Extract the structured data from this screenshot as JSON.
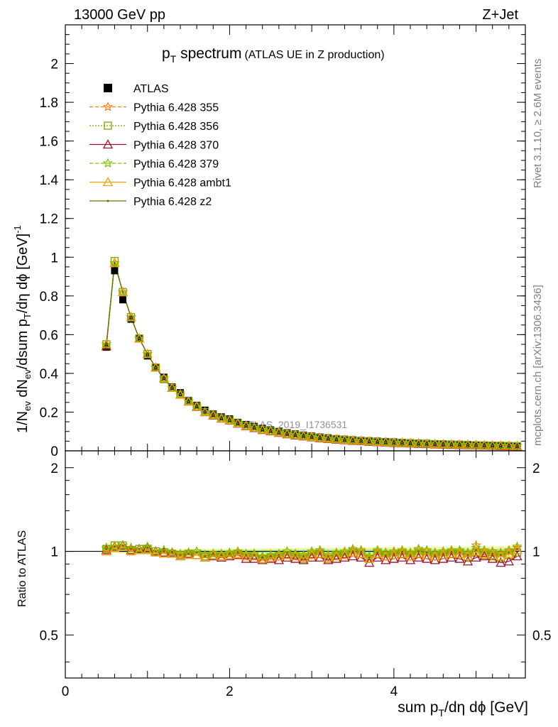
{
  "header": {
    "left": "13000 GeV pp",
    "right": "Z+Jet"
  },
  "title": {
    "main_pre": "p",
    "main_sub": "T",
    "main_post": " spectrum",
    "paren": "(ATLAS UE in Z production)"
  },
  "side_labels": {
    "rivet": "Rivet 3.1.10, ≥ 2.6M events",
    "mcplots": "mcplots.cern.ch [arXiv:1306.3436]"
  },
  "watermark": "ATLAS_2019_I1736531",
  "ylabel_main": "1/N_ev dN_ev/dsum p_T/dη dϕ [GeV]^-1",
  "ylabel_ratio": "Ratio to ATLAS",
  "xlabel": "sum p_T/dη dϕ [GeV]",
  "colors": {
    "atlas": "#000000",
    "p355": "#ff7f0e",
    "p356": "#7fa000",
    "p370": "#a0102a",
    "p379": "#7fc000",
    "ambt1": "#f0a000",
    "z2": "#667000",
    "band_inner": "#a8f0a8",
    "band_outer": "#fff3a0"
  },
  "chart_data": {
    "type": "scatter",
    "main": {
      "xlim": [
        0,
        5.6
      ],
      "ylim": [
        0,
        2.2
      ],
      "y_ticks": [
        "0",
        "0.2",
        "0.4",
        "0.6",
        "0.8",
        "1",
        "1.2",
        "1.4",
        "1.6",
        "1.8",
        "2"
      ]
    },
    "ratio": {
      "ylim": [
        0.35,
        2.3
      ],
      "y_ticks": [
        "0.5",
        "1",
        "2"
      ],
      "reference_line": 1
    },
    "x_ticks": [
      "0",
      "2",
      "4"
    ],
    "legend": [
      "ATLAS",
      "Pythia 6.428 355",
      "Pythia 6.428 356",
      "Pythia 6.428 370",
      "Pythia 6.428 379",
      "Pythia 6.428 ambt1",
      "Pythia 6.428 z2"
    ],
    "legend_position": "top-left",
    "x": [
      0.5,
      0.6,
      0.7,
      0.8,
      0.9,
      1.0,
      1.1,
      1.2,
      1.3,
      1.4,
      1.5,
      1.6,
      1.7,
      1.8,
      1.9,
      2.0,
      2.1,
      2.2,
      2.3,
      2.4,
      2.5,
      2.6,
      2.7,
      2.8,
      2.9,
      3.0,
      3.1,
      3.2,
      3.3,
      3.4,
      3.5,
      3.6,
      3.7,
      3.8,
      3.9,
      4.0,
      4.1,
      4.2,
      4.3,
      4.4,
      4.5,
      4.6,
      4.7,
      4.8,
      4.9,
      5.0,
      5.1,
      5.2,
      5.3,
      5.4,
      5.5
    ],
    "series": [
      {
        "name": "ATLAS",
        "values": [
          0.535,
          0.93,
          0.78,
          0.68,
          0.58,
          0.49,
          0.43,
          0.38,
          0.33,
          0.3,
          0.26,
          0.235,
          0.21,
          0.19,
          0.175,
          0.165,
          0.147,
          0.136,
          0.126,
          0.116,
          0.108,
          0.1,
          0.093,
          0.087,
          0.081,
          0.076,
          0.071,
          0.067,
          0.063,
          0.06,
          0.057,
          0.054,
          0.052,
          0.05,
          0.048,
          0.046,
          0.044,
          0.042,
          0.04,
          0.039,
          0.037,
          0.036,
          0.035,
          0.034,
          0.033,
          0.031,
          0.03,
          0.029,
          0.028,
          0.027,
          0.026
        ]
      },
      {
        "name": "Pythia 6.428 355",
        "values": [
          0.55,
          0.97,
          0.82,
          0.69,
          0.58,
          0.5,
          0.43,
          0.375,
          0.325,
          0.29,
          0.255,
          0.23,
          0.2,
          0.185,
          0.168,
          0.158,
          0.142,
          0.13,
          0.12,
          0.11,
          0.103,
          0.095,
          0.088,
          0.082,
          0.077,
          0.072,
          0.067,
          0.063,
          0.06,
          0.057,
          0.054,
          0.052,
          0.049,
          0.047,
          0.045,
          0.043,
          0.042,
          0.04,
          0.038,
          0.037,
          0.035,
          0.034,
          0.033,
          0.032,
          0.031,
          0.03,
          0.029,
          0.028,
          0.027,
          0.026,
          0.025
        ]
      },
      {
        "name": "Pythia 6.428 356",
        "values": [
          0.55,
          0.98,
          0.82,
          0.69,
          0.58,
          0.5,
          0.43,
          0.37,
          0.325,
          0.29,
          0.255,
          0.228,
          0.2,
          0.183,
          0.167,
          0.157,
          0.141,
          0.129,
          0.119,
          0.109,
          0.102,
          0.094,
          0.087,
          0.081,
          0.076,
          0.071,
          0.066,
          0.062,
          0.059,
          0.056,
          0.053,
          0.051,
          0.048,
          0.046,
          0.044,
          0.042,
          0.041,
          0.039,
          0.037,
          0.036,
          0.034,
          0.033,
          0.032,
          0.031,
          0.03,
          0.029,
          0.028,
          0.027,
          0.026,
          0.025,
          0.024
        ]
      },
      {
        "name": "Pythia 6.428 370",
        "values": [
          0.54,
          0.97,
          0.82,
          0.69,
          0.58,
          0.5,
          0.43,
          0.375,
          0.325,
          0.29,
          0.255,
          0.228,
          0.2,
          0.183,
          0.167,
          0.157,
          0.141,
          0.128,
          0.118,
          0.108,
          0.101,
          0.093,
          0.086,
          0.08,
          0.075,
          0.07,
          0.065,
          0.061,
          0.058,
          0.055,
          0.052,
          0.05,
          0.047,
          0.045,
          0.043,
          0.041,
          0.04,
          0.038,
          0.036,
          0.035,
          0.033,
          0.032,
          0.031,
          0.03,
          0.029,
          0.028,
          0.027,
          0.026,
          0.025,
          0.024,
          0.023
        ]
      },
      {
        "name": "Pythia 6.428 379",
        "values": [
          0.55,
          0.97,
          0.82,
          0.69,
          0.58,
          0.5,
          0.43,
          0.375,
          0.325,
          0.29,
          0.255,
          0.23,
          0.2,
          0.185,
          0.168,
          0.158,
          0.142,
          0.13,
          0.12,
          0.11,
          0.103,
          0.095,
          0.088,
          0.082,
          0.077,
          0.072,
          0.067,
          0.063,
          0.06,
          0.057,
          0.054,
          0.052,
          0.049,
          0.047,
          0.045,
          0.043,
          0.042,
          0.04,
          0.038,
          0.037,
          0.035,
          0.034,
          0.033,
          0.032,
          0.031,
          0.03,
          0.029,
          0.028,
          0.027,
          0.026,
          0.025
        ]
      },
      {
        "name": "Pythia 6.428 ambt1",
        "values": [
          0.55,
          0.97,
          0.82,
          0.69,
          0.58,
          0.5,
          0.43,
          0.375,
          0.325,
          0.29,
          0.255,
          0.23,
          0.2,
          0.185,
          0.168,
          0.158,
          0.142,
          0.13,
          0.12,
          0.11,
          0.103,
          0.095,
          0.088,
          0.082,
          0.077,
          0.072,
          0.067,
          0.063,
          0.06,
          0.057,
          0.054,
          0.052,
          0.049,
          0.047,
          0.045,
          0.043,
          0.042,
          0.04,
          0.038,
          0.037,
          0.035,
          0.034,
          0.033,
          0.032,
          0.031,
          0.03,
          0.029,
          0.028,
          0.027,
          0.026,
          0.025
        ]
      },
      {
        "name": "Pythia 6.428 z2",
        "values": [
          0.55,
          0.97,
          0.82,
          0.69,
          0.58,
          0.5,
          0.43,
          0.375,
          0.325,
          0.29,
          0.255,
          0.23,
          0.2,
          0.185,
          0.168,
          0.158,
          0.142,
          0.13,
          0.12,
          0.11,
          0.103,
          0.095,
          0.088,
          0.082,
          0.077,
          0.072,
          0.067,
          0.063,
          0.06,
          0.057,
          0.054,
          0.052,
          0.049,
          0.047,
          0.045,
          0.043,
          0.042,
          0.04,
          0.038,
          0.037,
          0.035,
          0.034,
          0.033,
          0.032,
          0.031,
          0.03,
          0.029,
          0.028,
          0.027,
          0.026,
          0.025
        ]
      }
    ],
    "ratio_series": [
      {
        "name": "Pythia 6.428 355",
        "values": [
          1.02,
          1.04,
          1.05,
          1.03,
          1.02,
          1.04,
          1.0,
          1.01,
          0.99,
          0.97,
          0.99,
          1.0,
          0.97,
          0.98,
          0.97,
          0.98,
          0.99,
          0.97,
          0.98,
          0.95,
          0.96,
          0.97,
          1.0,
          0.97,
          0.96,
          0.99,
          1.0,
          0.96,
          0.98,
          0.99,
          1.01,
          1.0,
          0.95,
          1.0,
          0.98,
          0.99,
          1.0,
          0.98,
          1.01,
          1.0,
          0.98,
          0.99,
          1.0,
          1.0,
          0.98,
          1.05,
          1.0,
          0.99,
          0.98,
          1.0,
          1.03
        ]
      },
      {
        "name": "Pythia 6.428 356",
        "values": [
          1.02,
          1.05,
          1.05,
          1.01,
          1.02,
          1.02,
          1.0,
          0.99,
          0.98,
          0.97,
          0.98,
          0.97,
          0.96,
          0.97,
          0.96,
          0.97,
          0.98,
          0.96,
          0.96,
          0.94,
          0.95,
          0.96,
          0.97,
          0.96,
          0.94,
          0.97,
          0.98,
          0.94,
          0.96,
          0.97,
          0.99,
          0.98,
          0.94,
          0.98,
          0.96,
          0.97,
          0.98,
          0.96,
          0.98,
          0.97,
          0.96,
          0.97,
          0.98,
          0.98,
          0.95,
          0.99,
          0.97,
          0.96,
          0.95,
          0.97,
          0.99
        ]
      },
      {
        "name": "Pythia 6.428 370",
        "values": [
          1.01,
          1.04,
          1.05,
          1.01,
          1.02,
          1.03,
          1.0,
          0.99,
          0.99,
          0.96,
          0.98,
          0.97,
          0.95,
          0.96,
          0.95,
          0.96,
          0.97,
          0.94,
          0.94,
          0.93,
          0.94,
          0.93,
          0.95,
          0.94,
          0.93,
          0.95,
          0.95,
          0.93,
          0.94,
          0.95,
          0.96,
          0.95,
          0.91,
          0.95,
          0.93,
          0.94,
          0.95,
          0.93,
          0.95,
          0.94,
          0.93,
          0.94,
          0.95,
          0.94,
          0.92,
          0.95,
          0.96,
          0.94,
          0.91,
          0.92,
          0.96
        ]
      },
      {
        "name": "Pythia 6.428 379",
        "values": [
          1.03,
          1.04,
          1.05,
          1.02,
          1.02,
          1.03,
          1.0,
          1.01,
          0.99,
          0.98,
          0.99,
          1.0,
          0.97,
          0.98,
          0.98,
          0.99,
          1.0,
          0.98,
          0.98,
          0.96,
          0.97,
          0.98,
          1.0,
          0.98,
          0.97,
          1.0,
          1.01,
          0.97,
          0.99,
          1.0,
          1.02,
          1.01,
          0.96,
          1.01,
          0.99,
          1.0,
          1.01,
          0.99,
          1.02,
          1.01,
          0.99,
          1.0,
          1.01,
          1.01,
          0.99,
          1.03,
          1.01,
          1.0,
          0.99,
          1.01,
          1.04
        ]
      },
      {
        "name": "Pythia 6.428 ambt1",
        "values": [
          1.0,
          1.03,
          1.04,
          1.0,
          1.01,
          1.01,
          0.99,
          0.98,
          0.98,
          0.96,
          0.97,
          0.97,
          0.95,
          0.97,
          0.96,
          0.97,
          0.98,
          0.96,
          0.96,
          0.94,
          0.95,
          0.96,
          0.97,
          0.96,
          0.95,
          0.97,
          0.98,
          0.95,
          0.96,
          0.97,
          0.99,
          0.98,
          0.94,
          0.98,
          0.96,
          0.97,
          0.98,
          0.96,
          0.98,
          0.97,
          0.96,
          0.97,
          0.98,
          0.98,
          0.96,
          1.0,
          0.98,
          0.97,
          0.96,
          0.98,
          1.01
        ]
      },
      {
        "name": "Pythia 6.428 z2",
        "values": [
          1.02,
          1.04,
          1.05,
          1.02,
          1.02,
          1.03,
          1.0,
          1.0,
          0.99,
          0.97,
          0.98,
          0.99,
          0.96,
          0.98,
          0.97,
          0.98,
          0.99,
          0.97,
          0.97,
          0.95,
          0.96,
          0.97,
          0.99,
          0.97,
          0.96,
          0.98,
          0.99,
          0.96,
          0.97,
          0.98,
          1.0,
          0.99,
          0.95,
          0.99,
          0.97,
          0.98,
          0.99,
          0.97,
          1.0,
          0.99,
          0.97,
          0.98,
          0.99,
          0.99,
          0.97,
          1.01,
          0.99,
          0.98,
          0.97,
          0.99,
          1.02
        ]
      }
    ]
  }
}
